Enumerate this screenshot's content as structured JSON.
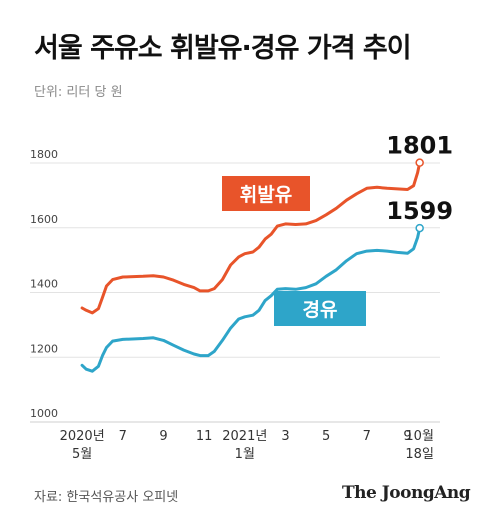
{
  "title": "서울 주유소 휘발유·경유 가격 추이",
  "unit_label": "단위: 리터 당 원",
  "source": "자료: 한국석유공사 오피넷",
  "brand": "The JoongAng",
  "colors": {
    "gasoline": "#e8542a",
    "diesel": "#2ea5c9",
    "grid": "#e3e3e3",
    "axis": "#cfcfcf"
  },
  "chart_data": {
    "type": "line",
    "title": "서울 주유소 휘발유·경유 가격 추이",
    "ylabel": "단위: 리터 당 원",
    "ylim": [
      1000,
      1850
    ],
    "yticks": [
      1000,
      1200,
      1400,
      1600,
      1800
    ],
    "x_tick_labels": [
      {
        "x": 5,
        "top": "2020년",
        "bottom": "5월"
      },
      {
        "x": 7,
        "top": "7",
        "bottom": ""
      },
      {
        "x": 9,
        "top": "9",
        "bottom": ""
      },
      {
        "x": 11,
        "top": "11",
        "bottom": ""
      },
      {
        "x": 13,
        "top": "2021년",
        "bottom": "1월"
      },
      {
        "x": 15,
        "top": "3",
        "bottom": ""
      },
      {
        "x": 17,
        "top": "5",
        "bottom": ""
      },
      {
        "x": 19,
        "top": "7",
        "bottom": ""
      },
      {
        "x": 21,
        "top": "9",
        "bottom": ""
      },
      {
        "x": 21.6,
        "top": "10월",
        "bottom": "18일"
      }
    ],
    "grid": true,
    "series": [
      {
        "name": "휘발유",
        "key": "gasoline",
        "end_label": "1801",
        "points": [
          [
            5.0,
            1352
          ],
          [
            5.2,
            1345
          ],
          [
            5.5,
            1337
          ],
          [
            5.8,
            1350
          ],
          [
            6.0,
            1385
          ],
          [
            6.2,
            1420
          ],
          [
            6.5,
            1440
          ],
          [
            7.0,
            1448
          ],
          [
            8.0,
            1450
          ],
          [
            8.5,
            1452
          ],
          [
            9.0,
            1448
          ],
          [
            9.5,
            1438
          ],
          [
            10.0,
            1425
          ],
          [
            10.5,
            1415
          ],
          [
            10.8,
            1405
          ],
          [
            11.2,
            1405
          ],
          [
            11.5,
            1412
          ],
          [
            11.9,
            1440
          ],
          [
            12.3,
            1485
          ],
          [
            12.7,
            1510
          ],
          [
            13.0,
            1520
          ],
          [
            13.4,
            1525
          ],
          [
            13.7,
            1540
          ],
          [
            14.0,
            1565
          ],
          [
            14.3,
            1580
          ],
          [
            14.6,
            1605
          ],
          [
            15.0,
            1612
          ],
          [
            15.5,
            1610
          ],
          [
            16.0,
            1612
          ],
          [
            16.5,
            1622
          ],
          [
            17.0,
            1640
          ],
          [
            17.5,
            1660
          ],
          [
            18.0,
            1685
          ],
          [
            18.5,
            1705
          ],
          [
            19.0,
            1722
          ],
          [
            19.5,
            1725
          ],
          [
            20.0,
            1722
          ],
          [
            20.5,
            1720
          ],
          [
            21.0,
            1718
          ],
          [
            21.3,
            1730
          ],
          [
            21.5,
            1770
          ],
          [
            21.6,
            1801
          ]
        ]
      },
      {
        "name": "경유",
        "key": "diesel",
        "end_label": "1599",
        "points": [
          [
            5.0,
            1175
          ],
          [
            5.2,
            1163
          ],
          [
            5.5,
            1157
          ],
          [
            5.8,
            1172
          ],
          [
            6.0,
            1205
          ],
          [
            6.2,
            1230
          ],
          [
            6.5,
            1250
          ],
          [
            7.0,
            1255
          ],
          [
            8.0,
            1258
          ],
          [
            8.5,
            1260
          ],
          [
            9.0,
            1252
          ],
          [
            9.5,
            1237
          ],
          [
            10.0,
            1222
          ],
          [
            10.5,
            1210
          ],
          [
            10.8,
            1205
          ],
          [
            11.2,
            1205
          ],
          [
            11.5,
            1218
          ],
          [
            11.9,
            1252
          ],
          [
            12.3,
            1290
          ],
          [
            12.7,
            1318
          ],
          [
            13.0,
            1325
          ],
          [
            13.4,
            1330
          ],
          [
            13.7,
            1345
          ],
          [
            14.0,
            1375
          ],
          [
            14.3,
            1390
          ],
          [
            14.6,
            1410
          ],
          [
            15.0,
            1412
          ],
          [
            15.5,
            1410
          ],
          [
            16.0,
            1415
          ],
          [
            16.5,
            1427
          ],
          [
            17.0,
            1450
          ],
          [
            17.5,
            1470
          ],
          [
            18.0,
            1498
          ],
          [
            18.5,
            1520
          ],
          [
            19.0,
            1528
          ],
          [
            19.5,
            1530
          ],
          [
            20.0,
            1528
          ],
          [
            20.5,
            1524
          ],
          [
            21.0,
            1521
          ],
          [
            21.3,
            1535
          ],
          [
            21.5,
            1570
          ],
          [
            21.6,
            1599
          ]
        ]
      }
    ]
  }
}
